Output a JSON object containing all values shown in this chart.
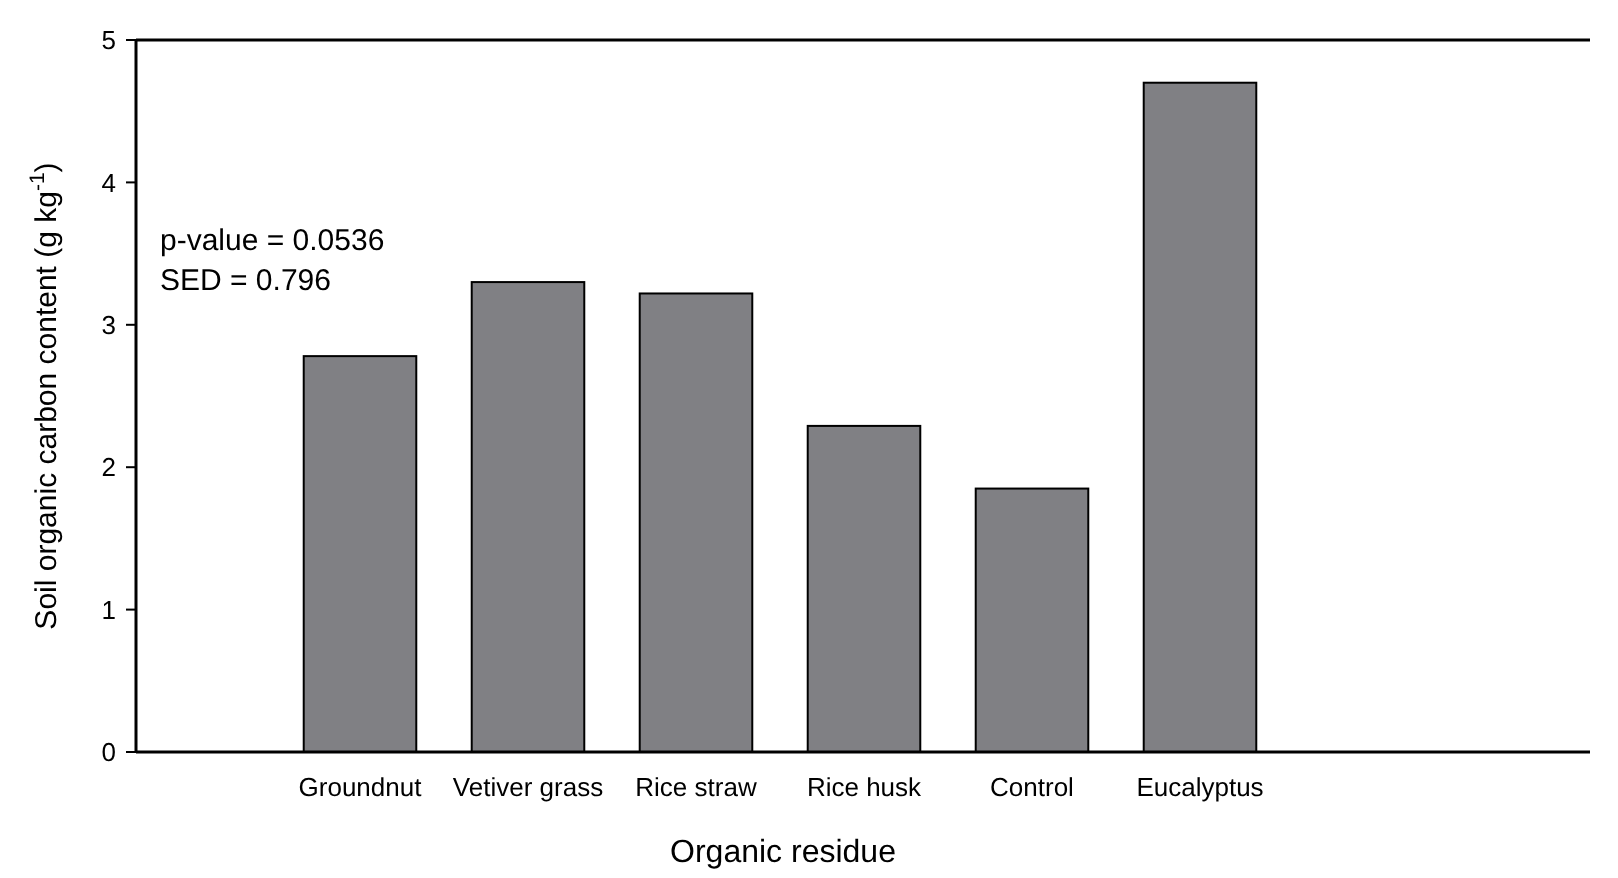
{
  "chart_data": {
    "type": "bar",
    "xlabel": "Organic residue",
    "ylabel": "Soil organic carbon content (g kg$^{-1}$)",
    "categories": [
      "Groundnut",
      "Vetiver grass",
      "Rice straw",
      "Rice husk",
      "Control",
      "Eucalyptus"
    ],
    "values": [
      2.78,
      3.3,
      3.22,
      2.29,
      1.85,
      4.7
    ],
    "color": "#808084",
    "ylim": [
      0,
      5
    ],
    "yticks": [
      0,
      1,
      2,
      3,
      4,
      5
    ],
    "grid": false,
    "annotations": [
      "p-value = 0.0536",
      "SED = 0.796"
    ]
  }
}
